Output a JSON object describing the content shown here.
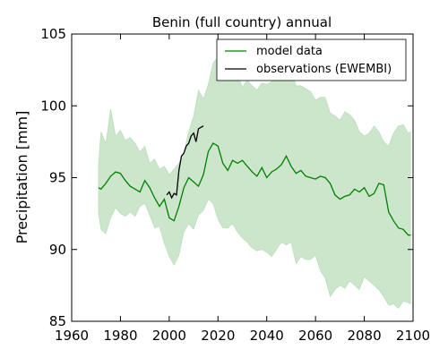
{
  "chart_data": {
    "type": "line",
    "title": "Benin (full country) annual",
    "xlabel": "",
    "ylabel": "Precipitation [mm]",
    "xlim": [
      1960,
      2100
    ],
    "ylim": [
      85,
      105
    ],
    "x_ticks": [
      1960,
      1980,
      2000,
      2020,
      2040,
      2060,
      2080,
      2100
    ],
    "y_ticks": [
      85,
      90,
      95,
      100,
      105
    ],
    "grid": false,
    "legend_position": "top-right",
    "colors": {
      "model": "#008000",
      "observations": "#000000",
      "band": "#008000"
    },
    "series": [
      {
        "name": "model data",
        "x": [
          1971,
          1972,
          1974,
          1976,
          1978,
          1980,
          1982,
          1984,
          1986,
          1988,
          1990,
          1992,
          1994,
          1996,
          1998,
          2000,
          2002,
          2004,
          2006,
          2008,
          2010,
          2012,
          2014,
          2016,
          2018,
          2020,
          2022,
          2024,
          2026,
          2028,
          2030,
          2032,
          2034,
          2036,
          2038,
          2040,
          2042,
          2044,
          2046,
          2048,
          2050,
          2052,
          2054,
          2056,
          2058,
          2060,
          2062,
          2064,
          2066,
          2068,
          2070,
          2072,
          2074,
          2076,
          2078,
          2080,
          2082,
          2084,
          2086,
          2088,
          2090,
          2092,
          2094,
          2096,
          2098,
          2099
        ],
        "values": [
          94.3,
          94.2,
          94.6,
          95.1,
          95.4,
          95.3,
          94.8,
          94.4,
          94.2,
          94.0,
          94.8,
          94.3,
          93.6,
          93.0,
          93.5,
          92.2,
          92.0,
          93.0,
          94.3,
          95.0,
          94.7,
          94.4,
          95.2,
          96.8,
          97.4,
          97.2,
          96.0,
          95.5,
          96.2,
          96.0,
          96.2,
          95.8,
          95.4,
          95.1,
          95.7,
          95.0,
          95.4,
          95.6,
          95.9,
          96.5,
          95.8,
          95.3,
          95.5,
          95.1,
          95.0,
          94.9,
          95.1,
          95.0,
          94.6,
          93.8,
          93.5,
          93.7,
          93.8,
          94.2,
          94.0,
          94.3,
          93.7,
          93.9,
          94.6,
          94.5,
          92.6,
          92.0,
          91.5,
          91.4,
          91.0,
          91.0
        ]
      },
      {
        "name": "observations (EWEMBI)",
        "x": [
          1999,
          2000,
          2001,
          2002,
          2003,
          2004,
          2005,
          2006,
          2007,
          2008,
          2009,
          2010,
          2011,
          2012,
          2013,
          2014
        ],
        "values": [
          93.8,
          94.0,
          93.6,
          93.9,
          93.8,
          95.5,
          96.5,
          96.7,
          97.2,
          97.4,
          97.9,
          98.1,
          97.5,
          98.4,
          98.5,
          98.6
        ]
      }
    ],
    "band": {
      "x": [
        1971,
        1972,
        1974,
        1976,
        1978,
        1980,
        1982,
        1984,
        1986,
        1988,
        1990,
        1992,
        1994,
        1996,
        1998,
        2000,
        2002,
        2004,
        2006,
        2008,
        2010,
        2012,
        2014,
        2016,
        2018,
        2020,
        2022,
        2024,
        2026,
        2028,
        2030,
        2032,
        2034,
        2036,
        2038,
        2040,
        2042,
        2044,
        2046,
        2048,
        2050,
        2052,
        2054,
        2056,
        2058,
        2060,
        2062,
        2064,
        2066,
        2068,
        2070,
        2072,
        2074,
        2076,
        2078,
        2080,
        2082,
        2084,
        2086,
        2088,
        2090,
        2092,
        2094,
        2096,
        2098,
        2099
      ],
      "upper": [
        96.0,
        98.2,
        97.4,
        99.8,
        97.9,
        98.3,
        97.6,
        97.8,
        97.4,
        96.8,
        97.2,
        96.0,
        96.3,
        95.6,
        95.8,
        95.2,
        95.6,
        96.0,
        96.8,
        98.2,
        99.3,
        101.1,
        100.5,
        101.5,
        103.0,
        103.4,
        102.8,
        102.5,
        102.8,
        102.2,
        101.3,
        101.8,
        101.4,
        101.1,
        101.6,
        101.5,
        101.7,
        101.9,
        101.8,
        103.4,
        102.5,
        101.4,
        101.4,
        101.2,
        101.0,
        100.4,
        100.6,
        100.6,
        99.5,
        99.3,
        99.0,
        99.6,
        99.4,
        99.0,
        98.2,
        97.9,
        98.1,
        98.6,
        98.2,
        97.5,
        97.2,
        98.1,
        98.6,
        98.7,
        98.1,
        98.2
      ],
      "lower": [
        92.5,
        91.4,
        91.1,
        92.2,
        92.9,
        92.5,
        92.3,
        92.6,
        92.3,
        93.0,
        93.2,
        92.4,
        91.5,
        91.6,
        90.4,
        89.5,
        88.9,
        89.6,
        91.2,
        91.8,
        91.4,
        92.4,
        92.7,
        93.5,
        93.2,
        92.1,
        91.5,
        91.5,
        91.8,
        91.2,
        90.8,
        90.5,
        90.1,
        89.9,
        90.0,
        89.8,
        89.5,
        90.0,
        90.5,
        90.3,
        90.5,
        89.0,
        89.5,
        89.3,
        89.3,
        89.6,
        88.5,
        88.0,
        86.7,
        87.2,
        87.5,
        87.3,
        87.8,
        87.5,
        87.2,
        88.1,
        87.8,
        87.5,
        87.2,
        86.7,
        86.1,
        86.2,
        85.9,
        86.4,
        86.3,
        86.2
      ]
    }
  }
}
